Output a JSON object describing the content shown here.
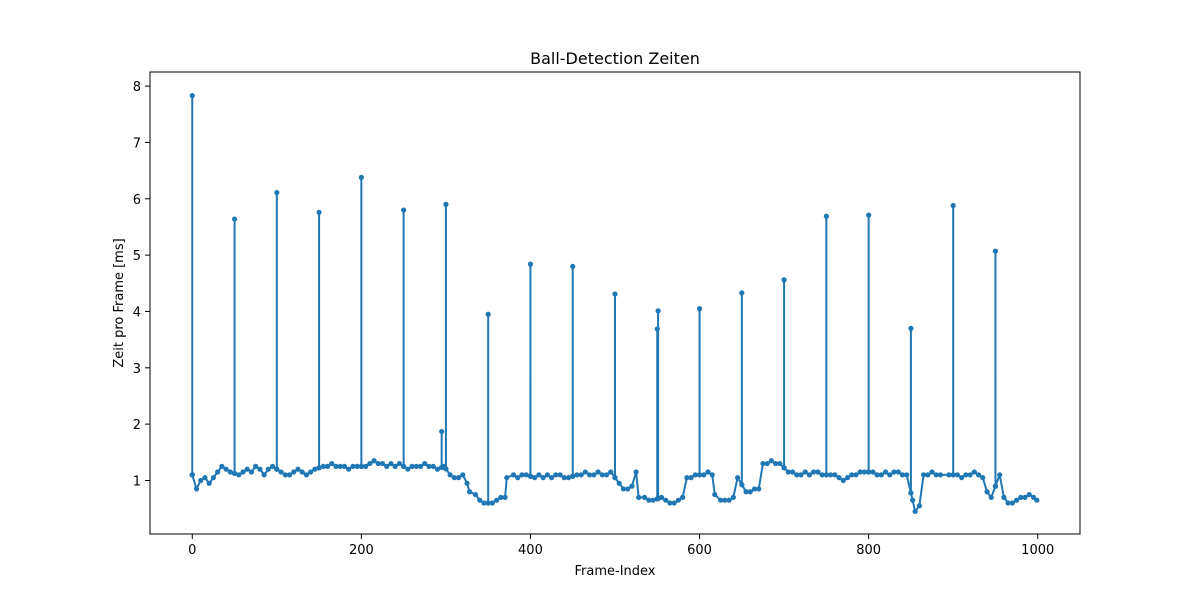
{
  "chart_data": {
    "type": "line",
    "title": "Ball-Detection Zeiten",
    "xlabel": "Frame-Index",
    "ylabel": "Zeit pro Frame [ms]",
    "xlim": [
      -50,
      1050
    ],
    "ylim": [
      0.05,
      8.25
    ],
    "xticks": [
      0,
      200,
      400,
      600,
      800,
      1000
    ],
    "yticks": [
      1,
      2,
      3,
      4,
      5,
      6,
      7,
      8
    ],
    "grid": false,
    "legend": "none",
    "marker": "circle",
    "colors": {
      "series": "#1f77b4",
      "axes": "#000000",
      "background": "#ffffff"
    },
    "series": [
      {
        "peaks": [
          [
            0,
            7.83
          ],
          [
            50,
            5.64
          ],
          [
            100,
            6.11
          ],
          [
            150,
            5.76
          ],
          [
            200,
            6.38
          ],
          [
            250,
            5.8
          ],
          [
            295,
            1.87
          ],
          [
            300,
            5.9
          ],
          [
            350,
            3.95
          ],
          [
            400,
            4.84
          ],
          [
            450,
            4.8
          ],
          [
            500,
            4.31
          ],
          [
            550,
            3.69
          ],
          [
            551,
            4.01
          ],
          [
            600,
            4.05
          ],
          [
            650,
            4.33
          ],
          [
            700,
            4.56
          ],
          [
            750,
            5.69
          ],
          [
            800,
            5.71
          ],
          [
            850,
            3.7
          ],
          [
            900,
            5.88
          ],
          [
            950,
            5.07
          ]
        ],
        "baseline": [
          [
            0,
            1.1
          ],
          [
            5,
            0.85
          ],
          [
            10,
            1.0
          ],
          [
            15,
            1.05
          ],
          [
            20,
            0.95
          ],
          [
            25,
            1.05
          ],
          [
            30,
            1.15
          ],
          [
            35,
            1.25
          ],
          [
            40,
            1.2
          ],
          [
            45,
            1.15
          ],
          [
            55,
            1.1
          ],
          [
            60,
            1.15
          ],
          [
            65,
            1.2
          ],
          [
            70,
            1.15
          ],
          [
            75,
            1.25
          ],
          [
            80,
            1.2
          ],
          [
            85,
            1.1
          ],
          [
            90,
            1.2
          ],
          [
            95,
            1.25
          ],
          [
            105,
            1.15
          ],
          [
            110,
            1.1
          ],
          [
            115,
            1.1
          ],
          [
            120,
            1.15
          ],
          [
            125,
            1.2
          ],
          [
            130,
            1.15
          ],
          [
            135,
            1.1
          ],
          [
            140,
            1.15
          ],
          [
            145,
            1.2
          ],
          [
            155,
            1.25
          ],
          [
            160,
            1.25
          ],
          [
            165,
            1.3
          ],
          [
            170,
            1.25
          ],
          [
            175,
            1.25
          ],
          [
            180,
            1.25
          ],
          [
            185,
            1.2
          ],
          [
            190,
            1.25
          ],
          [
            195,
            1.25
          ],
          [
            205,
            1.25
          ],
          [
            210,
            1.3
          ],
          [
            215,
            1.35
          ],
          [
            220,
            1.3
          ],
          [
            225,
            1.3
          ],
          [
            230,
            1.25
          ],
          [
            235,
            1.3
          ],
          [
            240,
            1.25
          ],
          [
            245,
            1.3
          ],
          [
            255,
            1.2
          ],
          [
            260,
            1.25
          ],
          [
            265,
            1.25
          ],
          [
            270,
            1.25
          ],
          [
            275,
            1.3
          ],
          [
            280,
            1.25
          ],
          [
            285,
            1.25
          ],
          [
            290,
            1.2
          ],
          [
            298,
            1.25
          ],
          [
            305,
            1.1
          ],
          [
            310,
            1.05
          ],
          [
            315,
            1.05
          ],
          [
            320,
            1.1
          ],
          [
            325,
            0.95
          ],
          [
            328,
            0.8
          ],
          [
            335,
            0.75
          ],
          [
            340,
            0.65
          ],
          [
            345,
            0.6
          ],
          [
            355,
            0.6
          ],
          [
            360,
            0.65
          ],
          [
            365,
            0.7
          ],
          [
            370,
            0.7
          ],
          [
            372,
            1.05
          ],
          [
            380,
            1.1
          ],
          [
            385,
            1.05
          ],
          [
            390,
            1.1
          ],
          [
            395,
            1.1
          ],
          [
            405,
            1.05
          ],
          [
            410,
            1.1
          ],
          [
            415,
            1.05
          ],
          [
            420,
            1.1
          ],
          [
            425,
            1.05
          ],
          [
            430,
            1.1
          ],
          [
            435,
            1.1
          ],
          [
            440,
            1.05
          ],
          [
            445,
            1.05
          ],
          [
            455,
            1.1
          ],
          [
            460,
            1.1
          ],
          [
            465,
            1.15
          ],
          [
            470,
            1.1
          ],
          [
            475,
            1.1
          ],
          [
            480,
            1.15
          ],
          [
            485,
            1.1
          ],
          [
            490,
            1.1
          ],
          [
            495,
            1.15
          ],
          [
            505,
            0.95
          ],
          [
            510,
            0.85
          ],
          [
            515,
            0.85
          ],
          [
            520,
            0.9
          ],
          [
            525,
            1.15
          ],
          [
            528,
            0.7
          ],
          [
            535,
            0.7
          ],
          [
            540,
            0.65
          ],
          [
            545,
            0.65
          ],
          [
            555,
            0.7
          ],
          [
            560,
            0.65
          ],
          [
            565,
            0.6
          ],
          [
            570,
            0.6
          ],
          [
            575,
            0.65
          ],
          [
            580,
            0.7
          ],
          [
            585,
            1.05
          ],
          [
            590,
            1.05
          ],
          [
            595,
            1.1
          ],
          [
            605,
            1.1
          ],
          [
            610,
            1.15
          ],
          [
            615,
            1.1
          ],
          [
            618,
            0.75
          ],
          [
            625,
            0.65
          ],
          [
            630,
            0.65
          ],
          [
            635,
            0.65
          ],
          [
            640,
            0.7
          ],
          [
            645,
            1.05
          ],
          [
            655,
            0.8
          ],
          [
            660,
            0.8
          ],
          [
            665,
            0.85
          ],
          [
            670,
            0.85
          ],
          [
            675,
            1.3
          ],
          [
            680,
            1.3
          ],
          [
            685,
            1.35
          ],
          [
            690,
            1.3
          ],
          [
            695,
            1.3
          ],
          [
            705,
            1.15
          ],
          [
            710,
            1.15
          ],
          [
            715,
            1.1
          ],
          [
            720,
            1.1
          ],
          [
            725,
            1.15
          ],
          [
            730,
            1.1
          ],
          [
            735,
            1.15
          ],
          [
            740,
            1.15
          ],
          [
            745,
            1.1
          ],
          [
            755,
            1.1
          ],
          [
            760,
            1.1
          ],
          [
            765,
            1.05
          ],
          [
            770,
            1.0
          ],
          [
            775,
            1.05
          ],
          [
            780,
            1.1
          ],
          [
            785,
            1.1
          ],
          [
            790,
            1.15
          ],
          [
            795,
            1.15
          ],
          [
            805,
            1.15
          ],
          [
            810,
            1.1
          ],
          [
            815,
            1.1
          ],
          [
            820,
            1.15
          ],
          [
            825,
            1.1
          ],
          [
            830,
            1.15
          ],
          [
            835,
            1.15
          ],
          [
            840,
            1.1
          ],
          [
            845,
            1.1
          ],
          [
            852,
            0.65
          ],
          [
            855,
            0.45
          ],
          [
            860,
            0.55
          ],
          [
            865,
            1.1
          ],
          [
            870,
            1.1
          ],
          [
            875,
            1.15
          ],
          [
            880,
            1.1
          ],
          [
            885,
            1.1
          ],
          [
            895,
            1.1
          ],
          [
            905,
            1.1
          ],
          [
            910,
            1.05
          ],
          [
            915,
            1.1
          ],
          [
            920,
            1.1
          ],
          [
            925,
            1.15
          ],
          [
            930,
            1.1
          ],
          [
            935,
            1.05
          ],
          [
            940,
            0.8
          ],
          [
            945,
            0.7
          ],
          [
            955,
            1.1
          ],
          [
            960,
            0.7
          ],
          [
            965,
            0.6
          ],
          [
            970,
            0.6
          ],
          [
            975,
            0.65
          ],
          [
            980,
            0.7
          ],
          [
            985,
            0.7
          ],
          [
            990,
            0.75
          ],
          [
            995,
            0.7
          ],
          [
            999,
            0.65
          ]
        ]
      }
    ]
  }
}
